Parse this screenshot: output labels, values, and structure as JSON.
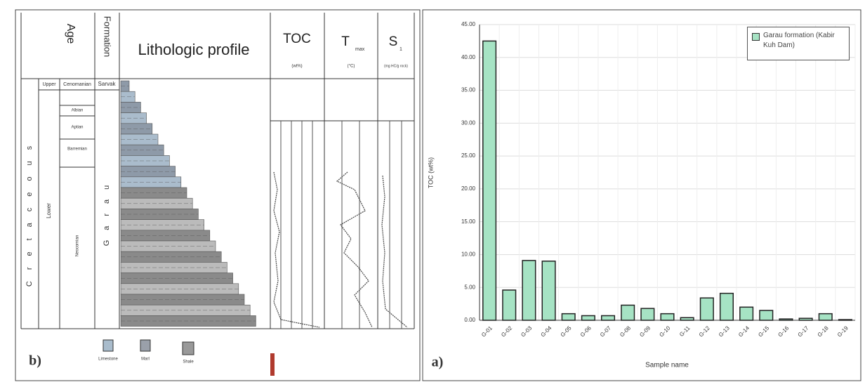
{
  "chart_data": {
    "type": "bar",
    "label": "a)",
    "y_label": "TOC (wt%)",
    "x_label": "Sample name",
    "categories": [
      "G-01",
      "G-02",
      "G-03",
      "G-04",
      "G-05",
      "G-06",
      "G-07",
      "G-08",
      "G-09",
      "G-10",
      "G-11",
      "G-12",
      "G-13",
      "G-14",
      "G-15",
      "G-16",
      "G-17",
      "G-18",
      "G-19"
    ],
    "series": [
      {
        "name": "Garau formation (Kabir Kuh Dam)",
        "color": "#a6e3c4",
        "values": [
          42.5,
          4.6,
          9.1,
          9.0,
          1.0,
          0.7,
          0.7,
          2.3,
          1.8,
          1.0,
          0.4,
          3.4,
          4.1,
          2.0,
          1.5,
          0.2,
          0.3,
          1.0,
          0.1
        ]
      }
    ],
    "ylim": [
      0,
      45
    ],
    "yticks": [
      {
        "value": 0,
        "label": "0.00"
      },
      {
        "value": 5,
        "label": "5.00"
      },
      {
        "value": 10,
        "label": "10.00"
      },
      {
        "value": 15,
        "label": "15.00"
      },
      {
        "value": 20,
        "label": "20.00"
      },
      {
        "value": 25,
        "label": "25.00"
      },
      {
        "value": 30,
        "label": "30.00"
      },
      {
        "value": 35,
        "label": "35.00"
      },
      {
        "value": 40,
        "label": "40.00"
      },
      {
        "value": 45,
        "label": "45.00"
      }
    ],
    "grid": true,
    "legend": "top-right"
  },
  "panel_b": {
    "label": "b)",
    "age": "Age",
    "formation": "Formation",
    "lithologic_profile": "Lithologic profile",
    "toc": "TOC",
    "toc_unit": "(wt%)",
    "tmax_symbol": "T",
    "tmax_sub": "max",
    "tmax_unit": "(°C)",
    "s1_symbol": "S",
    "s1_sub": "1",
    "s1_unit": "(mg HC/g rock)",
    "period": "Cretaceous",
    "epochs": [
      "Upper",
      "Lower"
    ],
    "stages": [
      "Cenomanian",
      "Albian",
      "Aptian",
      "Barremian",
      "Neocomian"
    ],
    "formations": [
      "Sarvak",
      "Garau"
    ],
    "legend": [
      "Limestone",
      "Marl",
      "Shale"
    ]
  }
}
